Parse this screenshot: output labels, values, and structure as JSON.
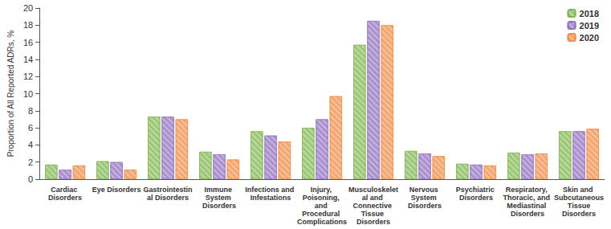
{
  "chart_data": {
    "type": "bar",
    "y_label": "Proportion of All Reported ADRs, %",
    "categories": [
      "Cardiac Disorders",
      "Eye Disorders",
      "Gastrointestinal Disorders",
      "Immune System Disorders",
      "Infections and Infestations",
      "Injury, Poisoning, and Procedural Complications",
      "Musculoskeletal and Connective Tissue Disorders",
      "Nervous System Disorders",
      "Psychiatric Disorders",
      "Respiratory, Thoracic, and Mediastinal Disorders",
      "Skin and Subcutaneous Tissue Disorders"
    ],
    "series": [
      {
        "name": "2018",
        "color": "#7ab648",
        "values": [
          1.7,
          2.1,
          7.3,
          3.2,
          5.6,
          6.0,
          15.7,
          3.3,
          1.8,
          3.1,
          5.6
        ]
      },
      {
        "name": "2019",
        "color": "#8e6bbf",
        "values": [
          1.1,
          2.0,
          7.3,
          2.9,
          5.1,
          7.0,
          18.5,
          3.0,
          1.7,
          2.9,
          5.6
        ]
      },
      {
        "name": "2020",
        "color": "#f0883e",
        "values": [
          1.6,
          1.1,
          7.0,
          2.3,
          4.4,
          9.7,
          18.0,
          2.7,
          1.6,
          3.0,
          5.9
        ]
      }
    ],
    "ylim": [
      0,
      20
    ],
    "yticks": [
      0,
      2,
      4,
      6,
      8,
      10,
      12,
      14,
      16,
      18,
      20
    ],
    "grid": false,
    "legend": "top-right"
  }
}
